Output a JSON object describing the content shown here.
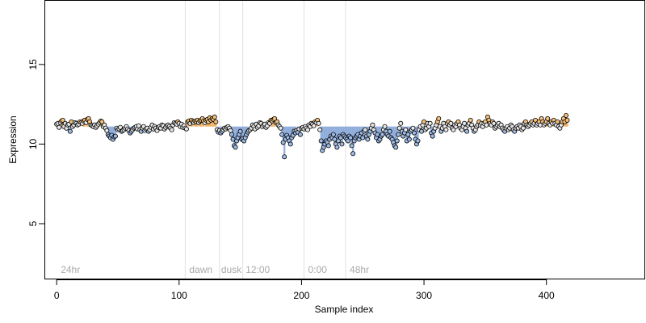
{
  "chart_data": {
    "type": "scatter",
    "title": "",
    "xlabel": "Sample index",
    "ylabel": "Expression",
    "xlim": [
      -10,
      480
    ],
    "ylim": [
      1.5,
      19
    ],
    "xticks": [
      0,
      100,
      200,
      300,
      400
    ],
    "yticks": [
      5,
      10,
      15
    ],
    "grid": false,
    "colors": {
      "point_border": "#000000",
      "point_fill_default": "#e6e6e6",
      "point_fill_up": "#f5c07a",
      "point_fill_down": "#9dbbe6",
      "bar_up": "#f0b060",
      "bar_down": "#8aa8d8",
      "separator": "#e0e0e0",
      "group_label": "#aaaaaa"
    },
    "separators": [
      105,
      133,
      152,
      202,
      236
    ],
    "groups": [
      {
        "label": "24hr",
        "x": 2
      },
      {
        "label": "dawn",
        "x": 107
      },
      {
        "label": "dusk",
        "x": 133
      },
      {
        "label": "12:00",
        "x": 153
      },
      {
        "label": "0:00",
        "x": 204
      },
      {
        "label": "48hr",
        "x": 238
      }
    ],
    "baseline": 11.1,
    "series": [
      {
        "values": [
          11.25,
          11.3,
          11.05,
          11.35,
          11.45,
          11.5,
          11.1,
          11.3,
          11.0,
          11.2,
          11.25,
          10.8,
          11.4,
          11.1,
          11.2,
          11.35,
          11.3,
          11.2,
          11.25,
          11.4,
          11.35,
          11.3,
          11.45,
          11.5,
          11.35,
          11.55,
          11.6,
          11.4,
          11.2,
          11.15,
          11.1,
          11.2,
          11.05,
          11.15,
          11.25,
          11.35,
          11.45,
          11.4,
          11.1,
          11.2,
          11.0,
          10.85,
          10.6,
          10.5,
          10.4,
          10.55,
          10.3,
          10.45,
          10.5,
          11.0,
          10.9,
          10.95,
          11.05,
          10.8,
          10.85,
          10.9,
          11.0,
          11.1,
          10.95,
          10.85,
          10.7,
          10.8,
          10.9,
          11.0,
          11.05,
          11.1,
          10.95,
          11.15,
          10.9,
          10.8,
          11.0,
          11.1,
          10.85,
          10.95,
          11.0,
          10.8,
          10.9,
          11.05,
          11.2,
          10.95,
          11.1,
          11.0,
          10.85,
          11.05,
          11.1,
          11.0,
          11.2,
          11.15,
          10.95,
          11.05,
          11.15,
          11.2,
          11.1,
          11.0,
          10.9,
          11.2,
          11.35,
          11.3,
          11.25,
          11.4,
          11.3,
          11.1,
          11.25,
          11.05,
          11.15,
          11.0,
          10.95,
          11.4,
          11.45,
          11.3,
          11.5,
          11.4,
          11.35,
          11.45,
          11.4,
          11.5,
          11.35,
          11.45,
          11.5,
          11.6,
          11.45,
          11.35,
          11.5,
          11.55,
          11.4,
          11.65,
          11.5,
          11.6,
          11.55,
          11.7,
          11.4,
          10.9,
          10.75,
          10.85,
          10.7,
          10.8,
          10.9,
          11.0,
          10.95,
          11.05,
          11.1,
          11.0,
          10.85,
          10.6,
          10.3,
          9.9,
          9.8,
          10.2,
          10.4,
          10.6,
          10.8,
          10.3,
          10.35,
          10.2,
          10.4,
          10.6,
          10.75,
          10.85,
          10.9,
          11.0,
          11.2,
          11.1,
          10.95,
          11.25,
          11.05,
          11.15,
          11.35,
          11.3,
          11.1,
          11.2,
          11.25,
          11.05,
          11.15,
          11.35,
          11.3,
          11.5,
          11.45,
          11.55,
          11.6,
          11.35,
          11.4,
          11.2,
          11.1,
          11.0,
          10.6,
          10.1,
          9.2,
          10.3,
          10.55,
          10.4,
          10.2,
          10.0,
          10.4,
          10.55,
          10.8,
          10.7,
          10.85,
          10.75,
          10.95,
          10.6,
          11.0,
          11.05,
          10.95,
          11.1,
          11.0,
          10.9,
          11.2,
          11.1,
          11.3,
          11.25,
          11.15,
          11.4,
          11.35,
          11.5,
          11.3,
          10.9,
          10.2,
          9.6,
          9.8,
          10.0,
          10.2,
          10.1,
          9.9,
          10.3,
          10.5,
          10.4,
          10.6,
          10.3,
          10.0,
          9.8,
          10.2,
          10.5,
          10.4,
          10.0,
          10.6,
          10.5,
          10.4,
          10.3,
          10.2,
          10.5,
          10.4,
          9.9,
          9.4,
          10.2,
          10.4,
          10.5,
          10.6,
          10.3,
          10.5,
          10.7,
          10.4,
          10.8,
          10.9,
          10.5,
          10.3,
          10.6,
          10.8,
          11.0,
          11.2,
          10.9,
          10.7,
          10.4,
          10.6,
          10.2,
          10.3,
          10.5,
          10.6,
          10.9,
          11.1,
          10.8,
          10.6,
          10.5,
          10.8,
          10.4,
          10.3,
          10.1,
          9.9,
          9.8,
          10.2,
          10.6,
          11.0,
          11.3,
          10.8,
          10.5,
          10.7,
          10.9,
          10.2,
          10.6,
          10.3,
          10.8,
          10.9,
          11.0,
          10.7,
          10.3,
          10.0,
          10.2,
          10.9,
          11.1,
          10.8,
          11.2,
          11.4,
          10.9,
          11.0,
          11.3,
          11.1,
          11.3,
          10.7,
          10.5,
          10.8,
          11.0,
          11.2,
          11.4,
          11.6,
          11.1,
          10.8,
          11.0,
          11.3,
          11.1,
          10.9,
          11.3,
          11.4,
          11.2,
          11.3,
          11.0,
          10.9,
          11.2,
          11.1,
          11.3,
          11.4,
          11.2,
          11.0,
          10.9,
          11.1,
          11.3,
          11.0,
          10.8,
          11.2,
          11.3,
          11.5,
          11.2,
          11.0,
          10.8,
          10.9,
          11.1,
          11.2,
          11.4,
          11.2,
          11.3,
          11.1,
          11.3,
          11.4,
          11.2,
          11.7,
          11.5,
          11.3,
          11.2,
          11.4,
          11.3,
          11.0,
          11.1,
          11.2,
          11.3,
          11.1,
          11.2,
          11.0,
          10.9,
          10.8,
          11.0,
          11.1,
          10.9,
          11.0,
          11.2,
          11.1,
          10.9,
          10.8,
          11.0,
          11.1,
          11.0,
          11.2,
          11.1,
          10.9,
          11.0,
          11.3,
          11.4,
          11.2,
          11.1,
          11.2,
          11.3,
          11.4,
          11.2,
          11.3,
          11.5,
          11.2,
          11.3,
          11.4,
          11.2,
          11.6,
          11.4,
          11.2,
          11.3,
          11.4,
          11.6,
          11.3,
          11.2,
          11.4,
          11.3,
          11.5,
          11.3,
          11.2,
          11.4,
          11.1,
          11.0,
          11.2,
          11.4,
          11.6,
          11.4,
          11.8,
          11.5
        ]
      }
    ]
  }
}
